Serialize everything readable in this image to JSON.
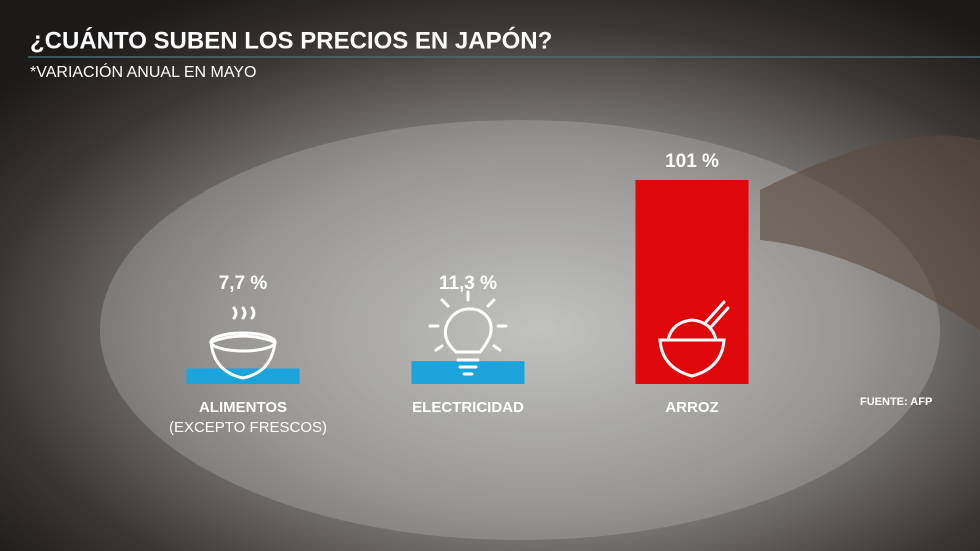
{
  "chart_data": {
    "type": "bar",
    "title": "¿CUÁNTO SUBEN LOS PRECIOS EN JAPÓN?",
    "subtitle": "*VARIACIÓN ANUAL EN MAYO",
    "source": "FUENTE: AFP",
    "categories": [
      "ALIMENTOS",
      "ELECTRICIDAD",
      "ARROZ"
    ],
    "category_sublabels": [
      "(EXCEPTO FRESCOS)",
      null,
      null
    ],
    "values": [
      7.7,
      11.3,
      101
    ],
    "value_labels": [
      "7,7 %",
      "11,3 %",
      "101 %"
    ],
    "colors": [
      "#1ba3dc",
      "#1ba3dc",
      "#e0070b"
    ]
  }
}
